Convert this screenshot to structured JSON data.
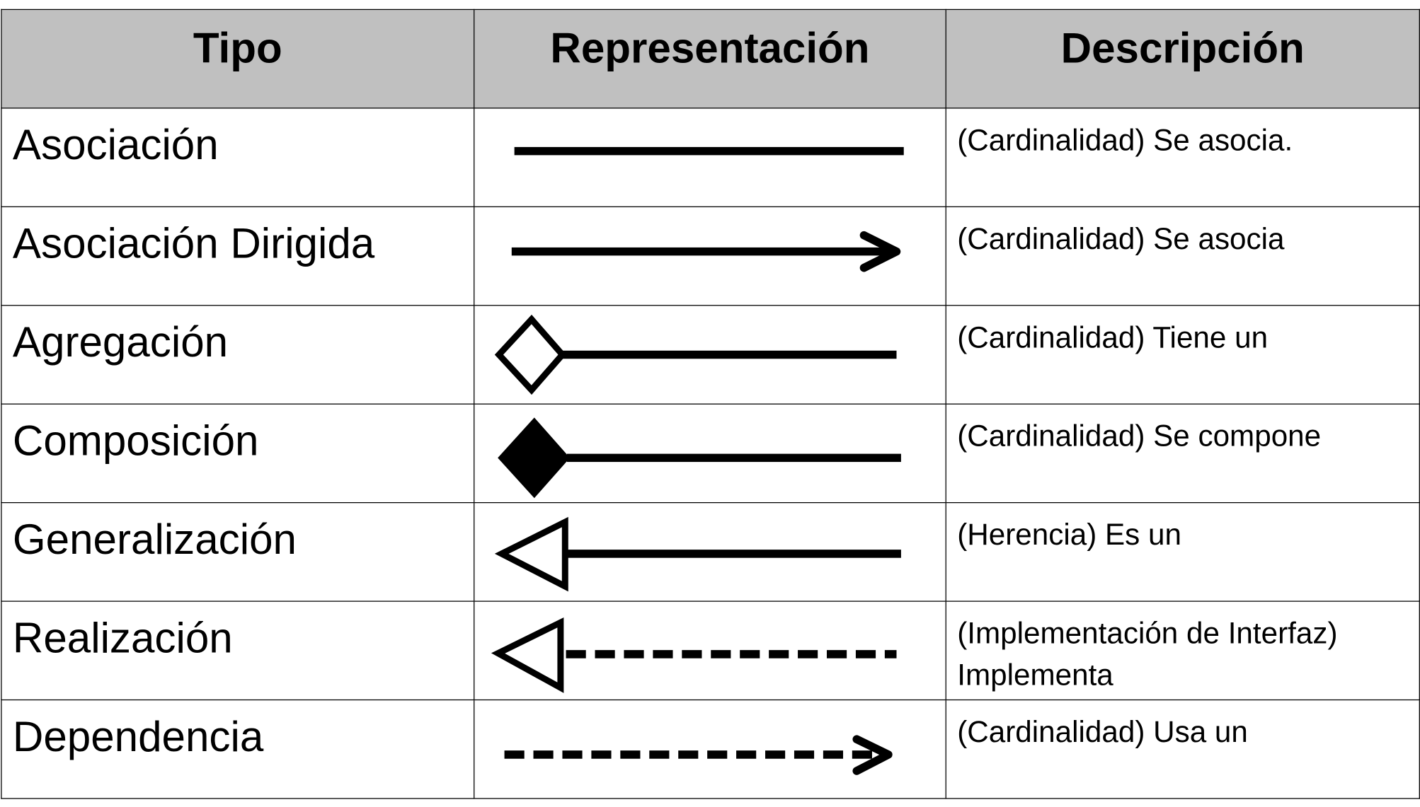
{
  "headers": [
    "Tipo",
    "Representación",
    "Descripción"
  ],
  "rows": [
    {
      "tipo": "Asociación",
      "symbol": "solid-line",
      "descripcion": "(Cardinalidad) Se asocia."
    },
    {
      "tipo": "Asociación Dirigida",
      "symbol": "solid-line-open-arrow",
      "descripcion": "(Cardinalidad) Se asocia"
    },
    {
      "tipo": "Agregación",
      "symbol": "hollow-diamond-line",
      "descripcion": "(Cardinalidad) Tiene un"
    },
    {
      "tipo": "Composición",
      "symbol": "filled-diamond-line",
      "descripcion": "(Cardinalidad) Se compone"
    },
    {
      "tipo": "Generalización",
      "symbol": "hollow-triangle-line",
      "descripcion": "(Herencia) Es un"
    },
    {
      "tipo": "Realización",
      "symbol": "hollow-triangle-dashed-line",
      "descripcion": "(Implementación de Interfaz) Implementa"
    },
    {
      "tipo": "Dependencia",
      "symbol": "dashed-line-open-arrow",
      "descripcion": "(Cardinalidad) Usa un"
    }
  ],
  "colors": {
    "header_bg": "#c0c0c0",
    "line": "#000000"
  }
}
